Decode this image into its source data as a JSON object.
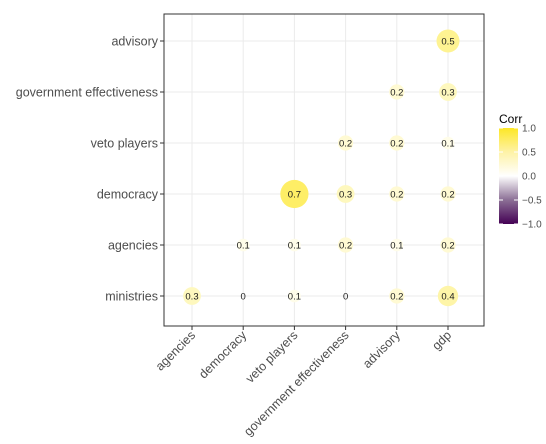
{
  "chart_data": {
    "type": "heatmap",
    "variant": "correlation-bubble",
    "x_categories": [
      "agencies",
      "democracy",
      "veto players",
      "government effectiveness",
      "advisory",
      "gdp"
    ],
    "y_categories": [
      "ministries",
      "agencies",
      "democracy",
      "veto players",
      "government effectiveness",
      "advisory"
    ],
    "cells": [
      {
        "row": "ministries",
        "col": "agencies",
        "value": 0.3,
        "label": "0.3"
      },
      {
        "row": "ministries",
        "col": "democracy",
        "value": 0.0,
        "label": "0"
      },
      {
        "row": "ministries",
        "col": "veto players",
        "value": 0.1,
        "label": "0.1"
      },
      {
        "row": "ministries",
        "col": "government effectiveness",
        "value": 0.0,
        "label": "0"
      },
      {
        "row": "ministries",
        "col": "advisory",
        "value": 0.2,
        "label": "0.2"
      },
      {
        "row": "ministries",
        "col": "gdp",
        "value": 0.4,
        "label": "0.4"
      },
      {
        "row": "agencies",
        "col": "democracy",
        "value": 0.1,
        "label": "0.1"
      },
      {
        "row": "agencies",
        "col": "veto players",
        "value": 0.1,
        "label": "0.1"
      },
      {
        "row": "agencies",
        "col": "government effectiveness",
        "value": 0.2,
        "label": "0.2"
      },
      {
        "row": "agencies",
        "col": "advisory",
        "value": 0.1,
        "label": "0.1"
      },
      {
        "row": "agencies",
        "col": "gdp",
        "value": 0.2,
        "label": "0.2"
      },
      {
        "row": "democracy",
        "col": "veto players",
        "value": 0.7,
        "label": "0.7"
      },
      {
        "row": "democracy",
        "col": "government effectiveness",
        "value": 0.3,
        "label": "0.3"
      },
      {
        "row": "democracy",
        "col": "advisory",
        "value": 0.2,
        "label": "0.2"
      },
      {
        "row": "democracy",
        "col": "gdp",
        "value": 0.2,
        "label": "0.2"
      },
      {
        "row": "veto players",
        "col": "government effectiveness",
        "value": 0.2,
        "label": "0.2"
      },
      {
        "row": "veto players",
        "col": "advisory",
        "value": 0.2,
        "label": "0.2"
      },
      {
        "row": "veto players",
        "col": "gdp",
        "value": 0.1,
        "label": "0.1"
      },
      {
        "row": "government effectiveness",
        "col": "advisory",
        "value": 0.2,
        "label": "0.2"
      },
      {
        "row": "government effectiveness",
        "col": "gdp",
        "value": 0.3,
        "label": "0.3"
      },
      {
        "row": "advisory",
        "col": "gdp",
        "value": 0.5,
        "label": "0.5"
      }
    ],
    "legend": {
      "title": "Corr",
      "range": [
        -1.0,
        1.0
      ],
      "ticks": [
        "1.0",
        "0.5",
        "0.0",
        "−0.5",
        "−1.0"
      ],
      "tick_values": [
        1.0,
        0.5,
        0.0,
        -0.5,
        -1.0
      ],
      "placement": "right"
    },
    "grid": true,
    "colors": {
      "high": "#FDE725",
      "mid": "#FFFFFF",
      "low": "#440154",
      "panel_border": "#333333",
      "grid": "#EBEBEB"
    }
  }
}
